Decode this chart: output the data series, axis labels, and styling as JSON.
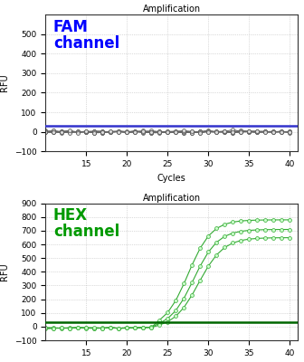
{
  "title": "Amplification",
  "xlabel": "Cycles",
  "ylabel": "RFU",
  "fam_label": "FAM\nchannel",
  "fam_label_color": "#0000FF",
  "fam_ylim": [
    -100,
    600
  ],
  "fam_yticks": [
    -100,
    0,
    100,
    200,
    300,
    400,
    500
  ],
  "fam_threshold": 30,
  "fam_threshold_color": "#3333CC",
  "fam_line_color": "#666666",
  "fam_marker_facecolor": "#DDDDDD",
  "fam_marker_edgecolor": "#555555",
  "hex_label": "HEX\nchannel",
  "hex_label_color": "#009900",
  "hex_ylim": [
    -100,
    900
  ],
  "hex_yticks": [
    -100,
    0,
    100,
    200,
    300,
    400,
    500,
    600,
    700,
    800,
    900
  ],
  "hex_threshold": 35,
  "hex_threshold_color": "#006600",
  "hex_line_color": "#33AA33",
  "hex_marker_facecolor": "#CCFFCC",
  "hex_marker_edgecolor": "#33AA33",
  "xlim": [
    10,
    41
  ],
  "xticks": [
    15,
    20,
    25,
    30,
    35,
    40
  ],
  "bg_color": "#FFFFFF",
  "grid_color": "#BBBBBB"
}
